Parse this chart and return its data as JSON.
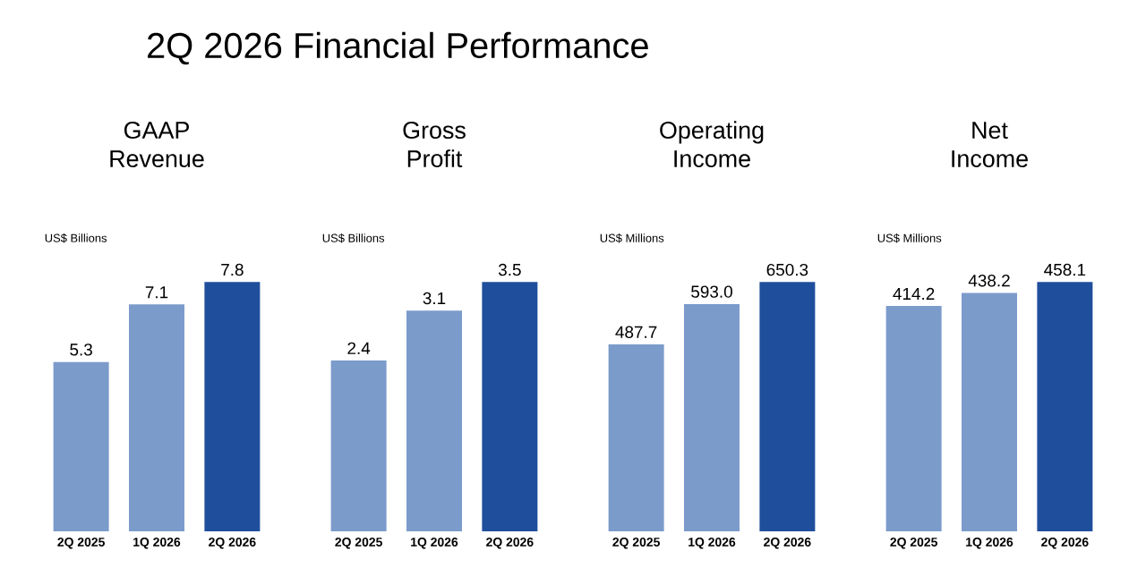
{
  "chart_data": [
    {
      "type": "other",
      "title": "2Q 2026 Financial Performance"
    },
    {
      "type": "bar",
      "title": "GAAP Revenue",
      "ylabel": "US$ Billions",
      "categories": [
        "2Q 2025",
        "1Q 2026",
        "2Q 2026"
      ],
      "values": [
        5.3,
        7.1,
        7.8
      ],
      "value_labels": [
        "5.3",
        "7.1",
        "7.8"
      ],
      "colors": [
        "#7b9bcb",
        "#7b9bcb",
        "#1f4f9c"
      ]
    },
    {
      "type": "bar",
      "title": "Gross Profit",
      "ylabel": "US$ Billions",
      "categories": [
        "2Q 2025",
        "1Q 2026",
        "2Q 2026"
      ],
      "values": [
        2.4,
        3.1,
        3.5
      ],
      "value_labels": [
        "2.4",
        "3.1",
        "3.5"
      ],
      "colors": [
        "#7b9bcb",
        "#7b9bcb",
        "#1f4f9c"
      ]
    },
    {
      "type": "bar",
      "title": "Operating Income",
      "ylabel": "US$ Millions",
      "categories": [
        "2Q 2025",
        "1Q 2026",
        "2Q 2026"
      ],
      "values": [
        487.7,
        593.0,
        650.3
      ],
      "value_labels": [
        "487.7",
        "593.0",
        "650.3"
      ],
      "colors": [
        "#7b9bcb",
        "#7b9bcb",
        "#1f4f9c"
      ]
    },
    {
      "type": "bar",
      "title": "Net Income",
      "ylabel": "US$ Millions",
      "categories": [
        "2Q 2025",
        "1Q 2026",
        "2Q 2026"
      ],
      "values": [
        414.2,
        438.2,
        458.1
      ],
      "value_labels": [
        "414.2",
        "438.2",
        "458.1"
      ],
      "colors": [
        "#7b9bcb",
        "#7b9bcb",
        "#1f4f9c"
      ]
    }
  ]
}
